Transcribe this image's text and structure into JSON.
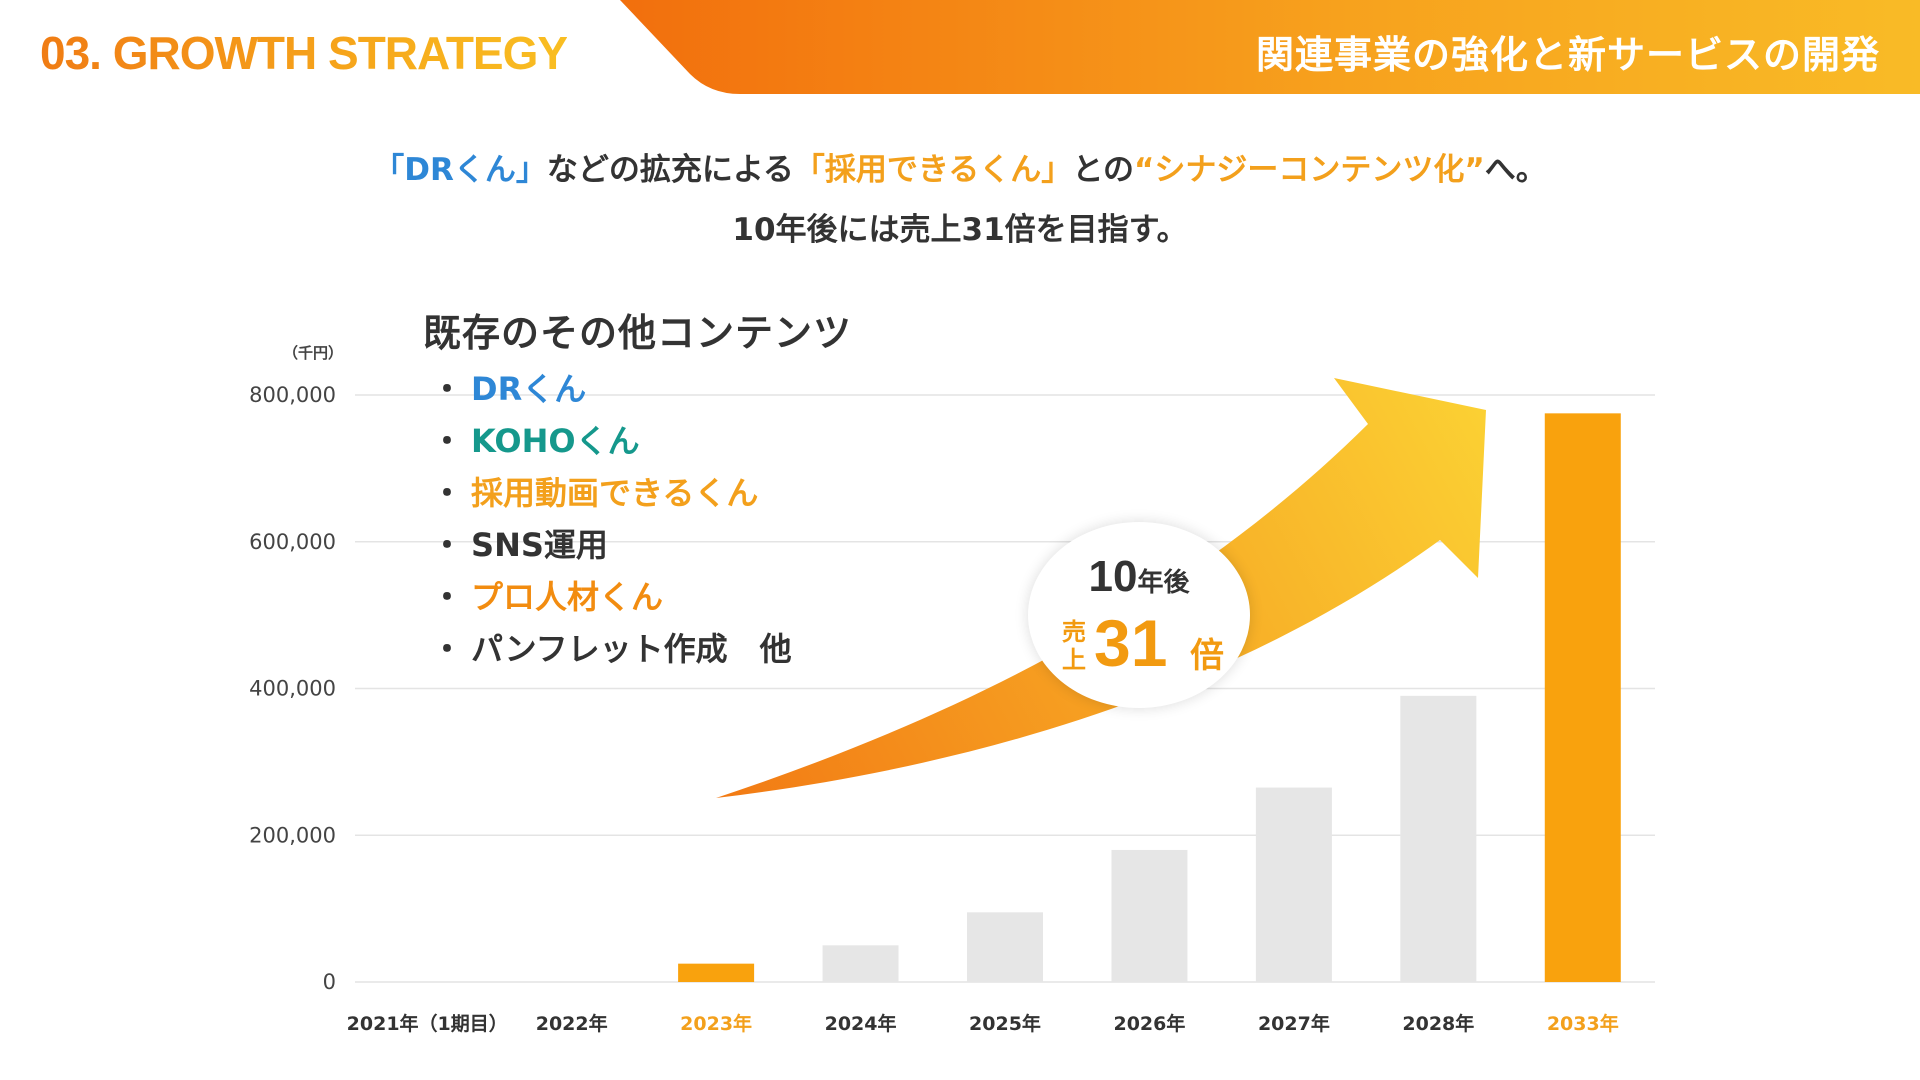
{
  "header": {
    "title": "03. GROWTH STRATEGY",
    "subtitle": "関連事業の強化と新サービスの開発"
  },
  "tagline": {
    "line1_open1": "「",
    "line1_dr": "DRくん",
    "line1_close1": "」",
    "line1_mid": "などの拡充による",
    "line1_saiyo": "「採用できるくん」",
    "line1_to": "との",
    "line1_synergy": "“シナジーコンテンツ化”",
    "line1_end": "へ。",
    "line2": "10年後には売上31倍を目指す。"
  },
  "content_box": {
    "title": "既存のその他コンテンツ",
    "bullet": "・",
    "items": [
      {
        "label": "DRくん",
        "color": "#2e87d6"
      },
      {
        "label": "KOHOくん",
        "color": "#15988c"
      },
      {
        "label": "採用動画できるくん",
        "color": "#f3a01c"
      },
      {
        "label": "SNS運用",
        "color": "#333333"
      },
      {
        "label": "プロ人材くん",
        "color": "#f28c10"
      },
      {
        "label": "パンフレット作成　他",
        "color": "#333333"
      }
    ]
  },
  "bubble": {
    "years_num": "10",
    "years_suffix": "年後",
    "sales_chars": [
      "売",
      "上"
    ],
    "sales_num": "31",
    "sales_suffix": "倍"
  },
  "colors": {
    "highlight_bar": "#f9a20d",
    "normal_bar": "#e6e6e6",
    "highlight_label": "#f3a01c",
    "normal_label": "#333333",
    "arrow_start": "#f27a14",
    "arrow_end": "#fbd033"
  },
  "chart_data": {
    "type": "bar",
    "unit_label": "（千円）",
    "categories": [
      "2021年（1期目）",
      "2022年",
      "2023年",
      "2024年",
      "2025年",
      "2026年",
      "2027年",
      "2028年",
      "2033年"
    ],
    "values": [
      0,
      0,
      25000,
      50000,
      95000,
      180000,
      265000,
      390000,
      775000
    ],
    "highlighted": [
      false,
      false,
      true,
      false,
      false,
      false,
      false,
      false,
      true
    ],
    "ylim": [
      0,
      800000
    ],
    "y_ticks": [
      0,
      200000,
      400000,
      600000,
      800000
    ],
    "y_tick_labels": [
      "0",
      "200,000",
      "400,000",
      "600,000",
      "800,000"
    ],
    "grid": true,
    "title": "",
    "xlabel": "",
    "ylabel": ""
  }
}
